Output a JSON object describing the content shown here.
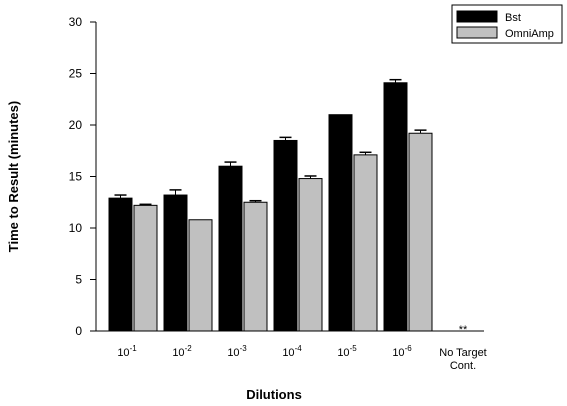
{
  "chart_data": {
    "type": "bar",
    "xlabel": "Dilutions",
    "ylabel": "Time to Result (minutes)",
    "ylim": [
      0,
      30
    ],
    "yticks": [
      0,
      5,
      10,
      15,
      20,
      25,
      30
    ],
    "grid": false,
    "legend_position": "top-right",
    "categories": [
      {
        "base": "10",
        "exp": "-1"
      },
      {
        "base": "10",
        "exp": "-2"
      },
      {
        "base": "10",
        "exp": "-3"
      },
      {
        "base": "10",
        "exp": "-4"
      },
      {
        "base": "10",
        "exp": "-5"
      },
      {
        "base": "10",
        "exp": "-6"
      },
      {
        "lines": [
          "No Target",
          "Cont."
        ]
      }
    ],
    "series": [
      {
        "name": "Bst",
        "color": "#000000",
        "values": [
          12.9,
          13.2,
          16.0,
          18.5,
          21.0,
          24.1,
          null
        ],
        "errors": [
          0.3,
          0.5,
          0.4,
          0.3,
          0.0,
          0.3,
          null
        ]
      },
      {
        "name": "OmniAmp",
        "color": "#c0c0c0",
        "values": [
          12.2,
          10.8,
          12.5,
          14.8,
          17.1,
          19.2,
          null
        ],
        "errors": [
          0.1,
          0.0,
          0.15,
          0.25,
          0.25,
          0.3,
          null
        ]
      }
    ],
    "annotations": [
      {
        "category_index": 6,
        "text": "**"
      }
    ]
  }
}
